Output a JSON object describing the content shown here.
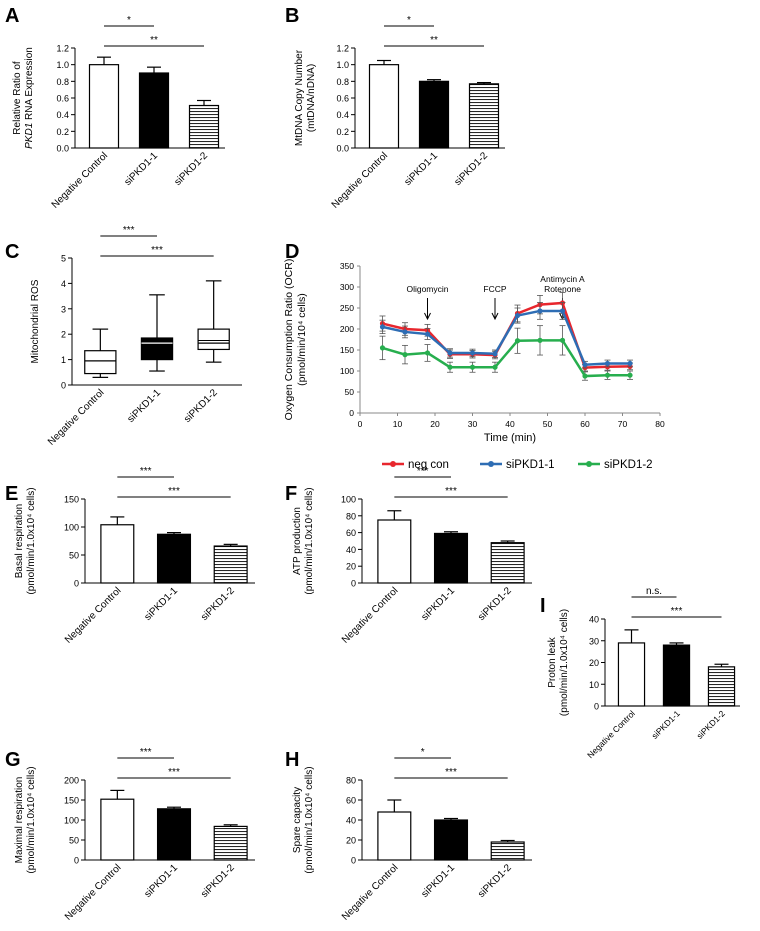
{
  "figure": {
    "name": "PKD1 knockdown mitochondrial function figure"
  },
  "chart_data": [
    {
      "id": "A",
      "panel_label": "A",
      "type": "bar",
      "ylabel_lines": [
        "Relative Ratio of",
        "PKD1 RNA Expression"
      ],
      "ylim": [
        0,
        1.2
      ],
      "yticks": [
        "0.0",
        "0.2",
        "0.4",
        "0.6",
        "0.8",
        "1.0",
        "1.2"
      ],
      "categories": [
        "Negative Control",
        "siPKD1-1",
        "siPKD1-2"
      ],
      "values": [
        1.0,
        0.9,
        0.51
      ],
      "errors": [
        0.09,
        0.07,
        0.06
      ],
      "significance": [
        {
          "from": 0,
          "to": 1,
          "label": "*"
        },
        {
          "from": 0,
          "to": 2,
          "label": "**"
        }
      ]
    },
    {
      "id": "B",
      "panel_label": "B",
      "type": "bar",
      "ylabel_lines": [
        "MtDNA Copy Number",
        "(mtDNA/nDNA)"
      ],
      "ylim": [
        0,
        1.2
      ],
      "yticks": [
        "0.0",
        "0.2",
        "0.4",
        "0.6",
        "0.8",
        "1.0",
        "1.2"
      ],
      "categories": [
        "Negative Control",
        "siPKD1-1",
        "siPKD1-2"
      ],
      "values": [
        1.0,
        0.8,
        0.77
      ],
      "errors": [
        0.05,
        0.02,
        0.015
      ],
      "significance": [
        {
          "from": 0,
          "to": 1,
          "label": "*"
        },
        {
          "from": 0,
          "to": 2,
          "label": "**"
        }
      ]
    },
    {
      "id": "C",
      "panel_label": "C",
      "type": "box",
      "ylabel_lines": [
        "Mitochondrial ROS"
      ],
      "ylim": [
        0,
        5
      ],
      "yticks": [
        "0",
        "1",
        "2",
        "3",
        "4",
        "5"
      ],
      "categories": [
        "Negative Control",
        "siPKD1-1",
        "siPKD1-2"
      ],
      "boxes": [
        {
          "min": 0.3,
          "q1": 0.45,
          "median": 0.95,
          "q3": 1.35,
          "max": 2.2
        },
        {
          "min": 0.55,
          "q1": 1.0,
          "median": 1.65,
          "q3": 1.85,
          "max": 3.55
        },
        {
          "min": 0.9,
          "q1": 1.4,
          "median": 1.65,
          "q3": 2.2,
          "max": 4.1
        }
      ],
      "significance": [
        {
          "from": 0,
          "to": 1,
          "label": "***"
        },
        {
          "from": 0,
          "to": 2,
          "label": "***"
        }
      ]
    },
    {
      "id": "D",
      "panel_label": "D",
      "type": "line",
      "ylabel_lines": [
        "Oxygen Consumption Ratio (OCR)",
        "(pmol/min/10⁴ cells)"
      ],
      "xlabel": "Time (min)",
      "xlim": [
        0,
        80
      ],
      "ylim": [
        0,
        350
      ],
      "xticks": [
        "0",
        "10",
        "20",
        "30",
        "40",
        "50",
        "60",
        "70",
        "80"
      ],
      "yticks": [
        "0",
        "50",
        "100",
        "150",
        "200",
        "250",
        "300",
        "350"
      ],
      "x": [
        6,
        12,
        18,
        24,
        30,
        36,
        42,
        48,
        54,
        60,
        66,
        72
      ],
      "series": [
        {
          "name": "neg con",
          "color": "#e8262d",
          "values": [
            213,
            200,
            197,
            140,
            140,
            138,
            237,
            258,
            262,
            108,
            110,
            111
          ],
          "errors": [
            18,
            15,
            14,
            10,
            9,
            9,
            20,
            22,
            25,
            8,
            8,
            8
          ]
        },
        {
          "name": "siPKD1-1",
          "color": "#2e6db4",
          "values": [
            205,
            193,
            188,
            143,
            143,
            141,
            232,
            243,
            243,
            115,
            118,
            118
          ],
          "errors": [
            16,
            14,
            13,
            10,
            9,
            9,
            18,
            20,
            20,
            8,
            8,
            8
          ]
        },
        {
          "name": "siPKD1-2",
          "color": "#27ae4e",
          "values": [
            155,
            139,
            143,
            109,
            109,
            109,
            172,
            173,
            173,
            88,
            90,
            90
          ],
          "errors": [
            28,
            22,
            20,
            12,
            12,
            12,
            30,
            35,
            35,
            10,
            10,
            10
          ]
        }
      ],
      "annotations": [
        {
          "label_lines": [
            "Oligomycin"
          ],
          "x": 18
        },
        {
          "label_lines": [
            "FCCP"
          ],
          "x": 36
        },
        {
          "label_lines": [
            "Antimycin A",
            "Rotenone"
          ],
          "x": 54
        }
      ]
    },
    {
      "id": "E",
      "panel_label": "E",
      "type": "bar",
      "ylabel_lines": [
        "Basal respiration",
        "(pmol/min/1.0x10⁴ cells)"
      ],
      "ylim": [
        0,
        150
      ],
      "yticks": [
        "0",
        "50",
        "100",
        "150"
      ],
      "categories": [
        "Negative Control",
        "siPKD1-1",
        "siPKD1-2"
      ],
      "values": [
        104,
        87,
        66
      ],
      "errors": [
        14,
        3,
        3
      ],
      "significance": [
        {
          "from": 0,
          "to": 1,
          "label": "***"
        },
        {
          "from": 0,
          "to": 2,
          "label": "***"
        }
      ]
    },
    {
      "id": "F",
      "panel_label": "F",
      "type": "bar",
      "ylabel_lines": [
        "ATP production",
        "(pmol/min/1.0x10⁴ cells)"
      ],
      "ylim": [
        0,
        100
      ],
      "yticks": [
        "0",
        "20",
        "40",
        "60",
        "80",
        "100"
      ],
      "categories": [
        "Negative Control",
        "siPKD1-1",
        "siPKD1-2"
      ],
      "values": [
        75,
        59,
        48
      ],
      "errors": [
        11,
        2,
        2
      ],
      "significance": [
        {
          "from": 0,
          "to": 1,
          "label": "***"
        },
        {
          "from": 0,
          "to": 2,
          "label": "***"
        }
      ]
    },
    {
      "id": "I",
      "panel_label": "I",
      "type": "bar",
      "ylabel_lines": [
        "Proton leak",
        "(pmol/min/1.0x10⁴ cells)"
      ],
      "ylim": [
        0,
        40
      ],
      "yticks": [
        "0",
        "10",
        "20",
        "30",
        "40"
      ],
      "categories": [
        "Negative Control",
        "siPKD1-1",
        "siPKD1-2"
      ],
      "values": [
        29,
        28,
        18
      ],
      "errors": [
        6,
        1,
        1.2
      ],
      "significance": [
        {
          "from": 0,
          "to": 1,
          "label": "n.s."
        },
        {
          "from": 0,
          "to": 2,
          "label": "***"
        }
      ]
    },
    {
      "id": "G",
      "panel_label": "G",
      "type": "bar",
      "ylabel_lines": [
        "Maximal respiration",
        "(pmol/min/1.0x10⁴ cells)"
      ],
      "ylim": [
        0,
        200
      ],
      "yticks": [
        "0",
        "50",
        "100",
        "150",
        "200"
      ],
      "categories": [
        "Negative Control",
        "siPKD1-1",
        "siPKD1-2"
      ],
      "values": [
        152,
        128,
        84
      ],
      "errors": [
        22,
        4,
        4
      ],
      "significance": [
        {
          "from": 0,
          "to": 1,
          "label": "***"
        },
        {
          "from": 0,
          "to": 2,
          "label": "***"
        }
      ]
    },
    {
      "id": "H",
      "panel_label": "H",
      "type": "bar",
      "ylabel_lines": [
        "Spare capacity",
        "(pmol/min/1.0x10⁴ cells)"
      ],
      "ylim": [
        0,
        80
      ],
      "yticks": [
        "0",
        "20",
        "40",
        "60",
        "80"
      ],
      "categories": [
        "Negative Control",
        "siPKD1-1",
        "siPKD1-2"
      ],
      "values": [
        48,
        40,
        18
      ],
      "errors": [
        12,
        1.5,
        1.5
      ],
      "significance": [
        {
          "from": 0,
          "to": 1,
          "label": "*"
        },
        {
          "from": 0,
          "to": 2,
          "label": "***"
        }
      ]
    }
  ]
}
